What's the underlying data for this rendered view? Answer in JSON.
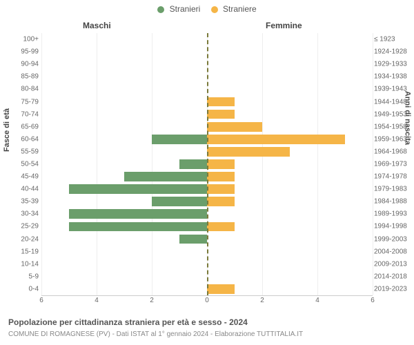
{
  "legend": {
    "male": {
      "label": "Stranieri",
      "color": "#6b9e6b"
    },
    "female": {
      "label": "Straniere",
      "color": "#f5b547"
    }
  },
  "subtitles": {
    "male": "Maschi",
    "female": "Femmine"
  },
  "axis_titles": {
    "left": "Fasce di età",
    "right": "Anni di nascita"
  },
  "chart": {
    "type": "population-pyramid",
    "x_max": 6,
    "x_ticks": [
      6,
      4,
      2,
      0,
      2,
      4,
      6
    ],
    "background_color": "#ffffff",
    "grid_color": "#eeeeee",
    "center_line_color": "#7a7a3a",
    "rows": [
      {
        "age": "100+",
        "birth": "≤ 1923",
        "m": 0,
        "f": 0
      },
      {
        "age": "95-99",
        "birth": "1924-1928",
        "m": 0,
        "f": 0
      },
      {
        "age": "90-94",
        "birth": "1929-1933",
        "m": 0,
        "f": 0
      },
      {
        "age": "85-89",
        "birth": "1934-1938",
        "m": 0,
        "f": 0
      },
      {
        "age": "80-84",
        "birth": "1939-1943",
        "m": 0,
        "f": 0
      },
      {
        "age": "75-79",
        "birth": "1944-1948",
        "m": 0,
        "f": 1
      },
      {
        "age": "70-74",
        "birth": "1949-1953",
        "m": 0,
        "f": 1
      },
      {
        "age": "65-69",
        "birth": "1954-1958",
        "m": 0,
        "f": 2
      },
      {
        "age": "60-64",
        "birth": "1959-1963",
        "m": 2,
        "f": 5
      },
      {
        "age": "55-59",
        "birth": "1964-1968",
        "m": 0,
        "f": 3
      },
      {
        "age": "50-54",
        "birth": "1969-1973",
        "m": 1,
        "f": 1
      },
      {
        "age": "45-49",
        "birth": "1974-1978",
        "m": 3,
        "f": 1
      },
      {
        "age": "40-44",
        "birth": "1979-1983",
        "m": 5,
        "f": 1
      },
      {
        "age": "35-39",
        "birth": "1984-1988",
        "m": 2,
        "f": 1
      },
      {
        "age": "30-34",
        "birth": "1989-1993",
        "m": 5,
        "f": 0
      },
      {
        "age": "25-29",
        "birth": "1994-1998",
        "m": 5,
        "f": 1
      },
      {
        "age": "20-24",
        "birth": "1999-2003",
        "m": 1,
        "f": 0
      },
      {
        "age": "15-19",
        "birth": "2004-2008",
        "m": 0,
        "f": 0
      },
      {
        "age": "10-14",
        "birth": "2009-2013",
        "m": 0,
        "f": 0
      },
      {
        "age": "5-9",
        "birth": "2014-2018",
        "m": 0,
        "f": 0
      },
      {
        "age": "0-4",
        "birth": "2019-2023",
        "m": 0,
        "f": 1
      }
    ]
  },
  "caption": "Popolazione per cittadinanza straniera per età e sesso - 2024",
  "subcaption": "COMUNE DI ROMAGNESE (PV) - Dati ISTAT al 1° gennaio 2024 - Elaborazione TUTTITALIA.IT"
}
